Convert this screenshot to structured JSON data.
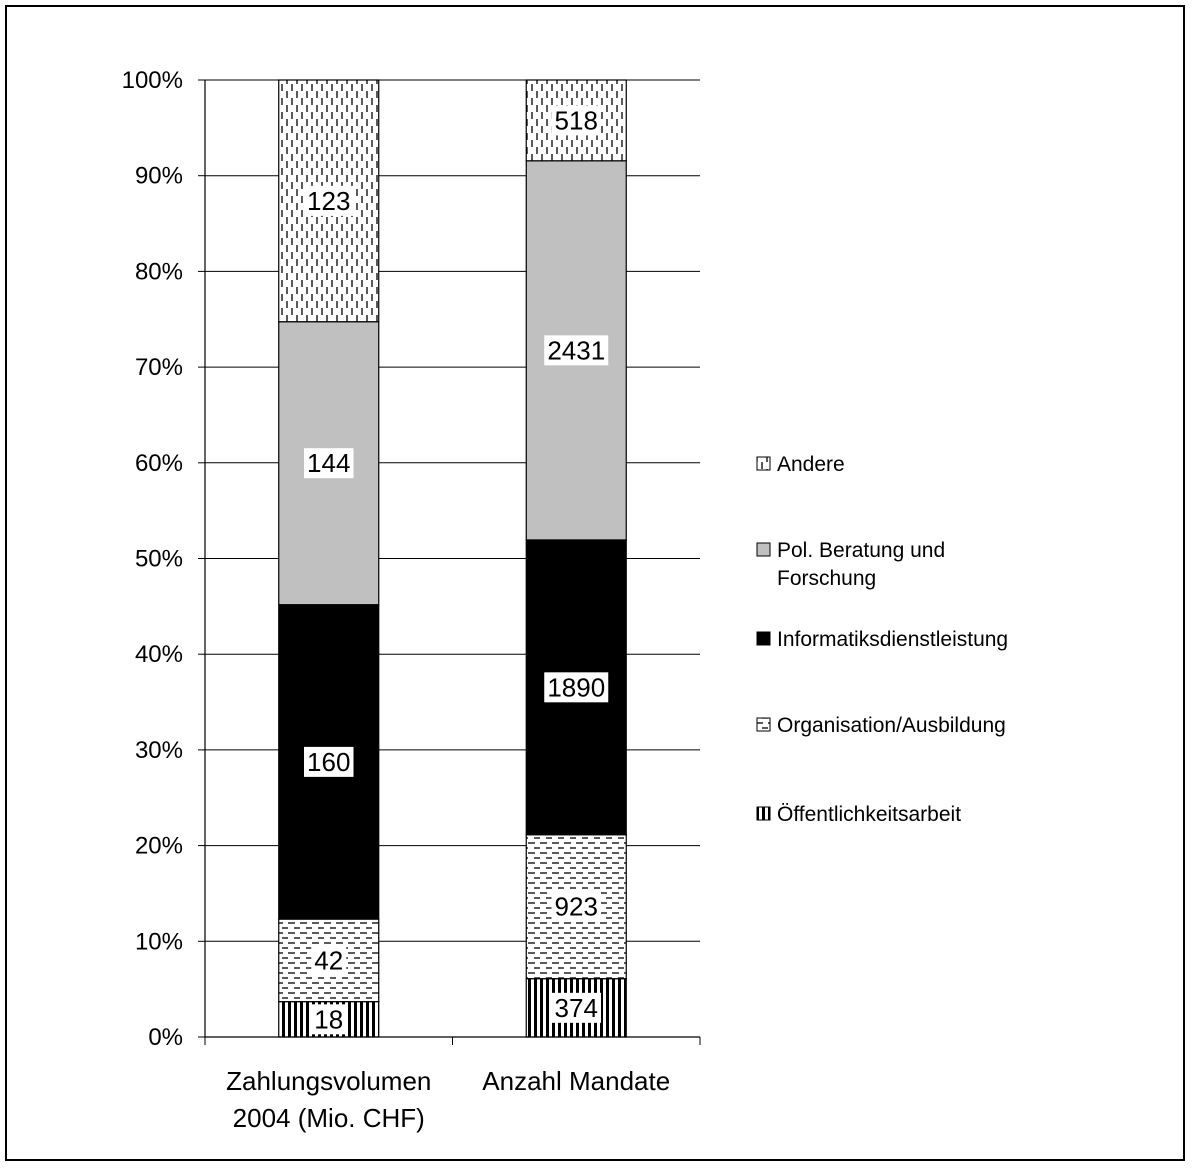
{
  "chart_data": {
    "type": "bar",
    "stacked": "percent",
    "categories": [
      [
        "Zahlungsvolumen",
        "2004 (Mio. CHF)"
      ],
      [
        "Anzahl Mandate"
      ]
    ],
    "series": [
      {
        "name": "Öffentlichkeitsarbeit",
        "values": [
          18,
          374
        ],
        "pattern": "vertical-lines"
      },
      {
        "name": "Organisation/Ausbildung",
        "values": [
          42,
          923
        ],
        "pattern": "dashed-horizontal"
      },
      {
        "name": "Informatiksdienstleistung",
        "values": [
          160,
          1890
        ],
        "pattern": "solid-black"
      },
      {
        "name": "Pol. Beratung und Forschung",
        "values": [
          144,
          2431
        ],
        "pattern": "solid-gray"
      },
      {
        "name": "Andere",
        "values": [
          123,
          518
        ],
        "pattern": "dashed-vertical"
      }
    ],
    "yticks": [
      "0%",
      "10%",
      "20%",
      "30%",
      "40%",
      "50%",
      "60%",
      "70%",
      "80%",
      "90%",
      "100%"
    ],
    "ylim": [
      0,
      100
    ],
    "grid": true,
    "legend_position": "right",
    "legend_order": [
      "Andere",
      "Pol. Beratung und Forschung",
      "Informatiksdienstleistung",
      "Organisation/Ausbildung",
      "Öffentlichkeitsarbeit"
    ],
    "colors": {
      "gray": "#c0c0c0",
      "black": "#000000",
      "white": "#ffffff"
    }
  }
}
